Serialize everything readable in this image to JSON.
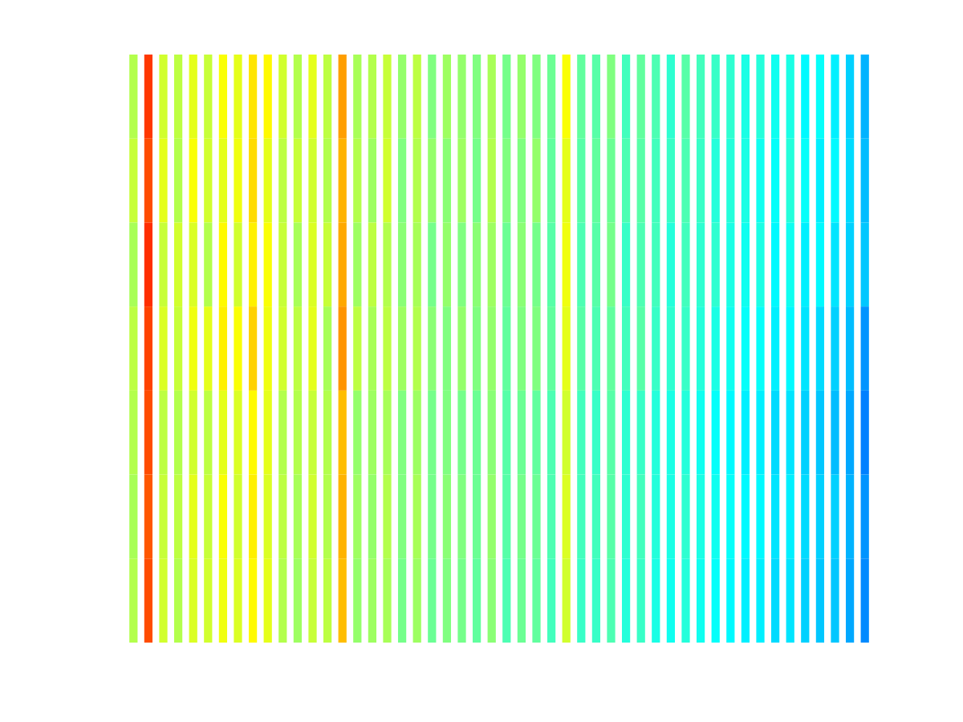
{
  "chart_data": {
    "type": "heatmap",
    "xlim": [
      0.5,
      50.5
    ],
    "ylim": [
      0.5,
      7.5
    ],
    "tick_labels": false,
    "color_range": [
      0,
      1
    ],
    "cells": [
      [
        0.55,
        0.82,
        0.58,
        0.56,
        0.6,
        0.57,
        0.62,
        0.6,
        0.65,
        0.63,
        0.58,
        0.55,
        0.6,
        0.56,
        0.72,
        0.54,
        0.55,
        0.57,
        0.52,
        0.56,
        0.5,
        0.53,
        0.52,
        0.5,
        0.54,
        0.49,
        0.52,
        0.5,
        0.48,
        0.62,
        0.47,
        0.46,
        0.5,
        0.44,
        0.47,
        0.45,
        0.42,
        0.46,
        0.44,
        0.43,
        0.42,
        0.4,
        0.41,
        0.39,
        0.4,
        0.37,
        0.38,
        0.36,
        0.33,
        0.3
      ],
      [
        0.57,
        0.8,
        0.6,
        0.55,
        0.62,
        0.58,
        0.6,
        0.61,
        0.66,
        0.6,
        0.56,
        0.57,
        0.58,
        0.55,
        0.7,
        0.55,
        0.53,
        0.58,
        0.5,
        0.55,
        0.52,
        0.51,
        0.53,
        0.49,
        0.55,
        0.5,
        0.5,
        0.52,
        0.47,
        0.6,
        0.46,
        0.47,
        0.48,
        0.45,
        0.46,
        0.44,
        0.43,
        0.45,
        0.43,
        0.41,
        0.41,
        0.4,
        0.39,
        0.38,
        0.41,
        0.38,
        0.36,
        0.37,
        0.34,
        0.31
      ],
      [
        0.54,
        0.83,
        0.57,
        0.58,
        0.59,
        0.55,
        0.63,
        0.58,
        0.64,
        0.62,
        0.57,
        0.54,
        0.59,
        0.57,
        0.71,
        0.53,
        0.56,
        0.55,
        0.51,
        0.54,
        0.49,
        0.52,
        0.5,
        0.51,
        0.53,
        0.48,
        0.51,
        0.49,
        0.46,
        0.61,
        0.45,
        0.46,
        0.49,
        0.43,
        0.45,
        0.44,
        0.41,
        0.44,
        0.42,
        0.42,
        0.4,
        0.39,
        0.4,
        0.37,
        0.39,
        0.36,
        0.37,
        0.35,
        0.33,
        0.32
      ],
      [
        0.56,
        0.81,
        0.59,
        0.57,
        0.61,
        0.6,
        0.64,
        0.62,
        0.67,
        0.61,
        0.58,
        0.56,
        0.6,
        0.54,
        0.73,
        0.56,
        0.54,
        0.56,
        0.53,
        0.55,
        0.51,
        0.5,
        0.52,
        0.5,
        0.52,
        0.47,
        0.5,
        0.5,
        0.47,
        0.6,
        0.46,
        0.45,
        0.47,
        0.44,
        0.46,
        0.43,
        0.42,
        0.43,
        0.41,
        0.4,
        0.39,
        0.38,
        0.38,
        0.36,
        0.37,
        0.35,
        0.34,
        0.33,
        0.31,
        0.27
      ],
      [
        0.55,
        0.8,
        0.56,
        0.55,
        0.58,
        0.56,
        0.6,
        0.59,
        0.63,
        0.6,
        0.55,
        0.55,
        0.57,
        0.55,
        0.69,
        0.52,
        0.53,
        0.54,
        0.5,
        0.53,
        0.49,
        0.5,
        0.49,
        0.48,
        0.51,
        0.46,
        0.48,
        0.47,
        0.45,
        0.58,
        0.44,
        0.43,
        0.46,
        0.42,
        0.43,
        0.41,
        0.4,
        0.41,
        0.39,
        0.38,
        0.37,
        0.36,
        0.36,
        0.34,
        0.35,
        0.33,
        0.32,
        0.31,
        0.29,
        0.25
      ],
      [
        0.54,
        0.79,
        0.57,
        0.56,
        0.6,
        0.57,
        0.62,
        0.58,
        0.64,
        0.59,
        0.56,
        0.54,
        0.58,
        0.55,
        0.7,
        0.53,
        0.52,
        0.55,
        0.5,
        0.54,
        0.49,
        0.51,
        0.5,
        0.48,
        0.52,
        0.46,
        0.49,
        0.48,
        0.45,
        0.59,
        0.44,
        0.44,
        0.46,
        0.42,
        0.44,
        0.41,
        0.4,
        0.42,
        0.4,
        0.39,
        0.38,
        0.37,
        0.37,
        0.35,
        0.36,
        0.34,
        0.33,
        0.33,
        0.3,
        0.27
      ],
      [
        0.55,
        0.8,
        0.58,
        0.55,
        0.59,
        0.58,
        0.61,
        0.59,
        0.63,
        0.6,
        0.55,
        0.53,
        0.57,
        0.56,
        0.69,
        0.52,
        0.53,
        0.54,
        0.49,
        0.53,
        0.48,
        0.5,
        0.49,
        0.47,
        0.51,
        0.45,
        0.48,
        0.47,
        0.44,
        0.58,
        0.43,
        0.43,
        0.45,
        0.41,
        0.43,
        0.4,
        0.39,
        0.41,
        0.39,
        0.38,
        0.37,
        0.36,
        0.36,
        0.34,
        0.35,
        0.33,
        0.32,
        0.32,
        0.29,
        0.26
      ]
    ]
  }
}
